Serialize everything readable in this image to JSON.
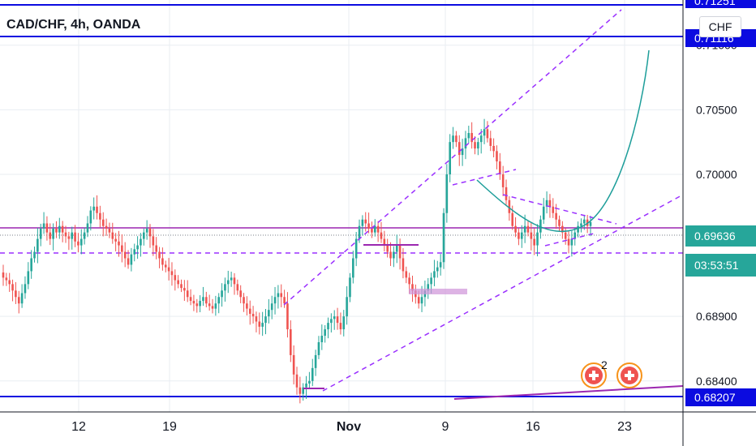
{
  "header": {
    "title": "CAD/CHF, 4h, OANDA",
    "currency": "CHF"
  },
  "colors": {
    "up": "#26a69a",
    "down": "#ef5350",
    "purple": "#9c27b0",
    "dashed": "#9b30ff",
    "blue": "#0b0be0",
    "teal": "#1e9e9a",
    "grid": "#e9edf2",
    "price_tag": "#26a69a",
    "marker": "#f7931a"
  },
  "chart_data": {
    "type": "candlestick",
    "y_ticks": [
      "0.71000",
      "0.70500",
      "0.70000",
      "0.68900",
      "0.68400"
    ],
    "x_ticks": [
      "12",
      "19",
      "Nov",
      "9",
      "16",
      "23"
    ],
    "price_tags": {
      "last_price": "0.69636",
      "countdown": "03:53:51",
      "top_level": "0.71251",
      "upper_level": "0.71116",
      "lower_level": "0.68207"
    },
    "markers": [
      {
        "badge": "2"
      },
      {
        "badge": ""
      }
    ],
    "series": [
      {
        "name": "CAD/CHF close",
        "values": [
          0.692,
          0.6918,
          0.6915,
          0.691,
          0.6905,
          0.69,
          0.6908,
          0.6915,
          0.6925,
          0.6935,
          0.694,
          0.695,
          0.6958,
          0.6962,
          0.6955,
          0.695,
          0.6958,
          0.6955,
          0.696,
          0.6955,
          0.6952,
          0.695,
          0.6955,
          0.6948,
          0.6945,
          0.695,
          0.6955,
          0.6962,
          0.6972,
          0.6975,
          0.697,
          0.6965,
          0.696,
          0.6958,
          0.6955,
          0.695,
          0.6948,
          0.6945,
          0.694,
          0.6935,
          0.693,
          0.6938,
          0.6942,
          0.6945,
          0.695,
          0.6955,
          0.6958,
          0.6952,
          0.6945,
          0.694,
          0.6935,
          0.693,
          0.6928,
          0.6925,
          0.6922,
          0.6918,
          0.6915,
          0.6912,
          0.691,
          0.6905,
          0.6902,
          0.69,
          0.6898,
          0.6902,
          0.6905,
          0.69,
          0.6898,
          0.6896,
          0.69,
          0.6905,
          0.691,
          0.6915,
          0.6918,
          0.692,
          0.6915,
          0.691,
          0.6905,
          0.69,
          0.6896,
          0.6892,
          0.689,
          0.6886,
          0.6882,
          0.6885,
          0.689,
          0.6895,
          0.69,
          0.6905,
          0.6908,
          0.6905,
          0.69,
          0.688,
          0.686,
          0.6845,
          0.6835,
          0.683,
          0.6835,
          0.6838,
          0.684,
          0.685,
          0.686,
          0.687,
          0.6875,
          0.688,
          0.6885,
          0.6888,
          0.689,
          0.6885,
          0.688,
          0.689,
          0.6905,
          0.692,
          0.6935,
          0.695,
          0.696,
          0.6965,
          0.6962,
          0.6958,
          0.6955,
          0.696,
          0.6955,
          0.695,
          0.6945,
          0.694,
          0.6935,
          0.694,
          0.6945,
          0.6935,
          0.6925,
          0.692,
          0.6915,
          0.691,
          0.6905,
          0.69,
          0.6905,
          0.691,
          0.6915,
          0.692,
          0.6925,
          0.6928,
          0.6932,
          0.697,
          0.7,
          0.7025,
          0.703,
          0.7025,
          0.7015,
          0.702,
          0.7028,
          0.7032,
          0.7025,
          0.702,
          0.7025,
          0.703,
          0.7035,
          0.7028,
          0.7022,
          0.7018,
          0.701,
          0.7,
          0.699,
          0.698,
          0.697,
          0.696,
          0.6955,
          0.695,
          0.6955,
          0.696,
          0.6955,
          0.695,
          0.6945,
          0.6955,
          0.6965,
          0.6975,
          0.698,
          0.6975,
          0.697,
          0.6965,
          0.696,
          0.6955,
          0.695,
          0.6945,
          0.695,
          0.6955,
          0.696,
          0.6962,
          0.6965,
          0.696,
          0.6963
        ]
      }
    ],
    "ylim": [
      0.6816,
      0.7135
    ],
    "grid": true
  }
}
